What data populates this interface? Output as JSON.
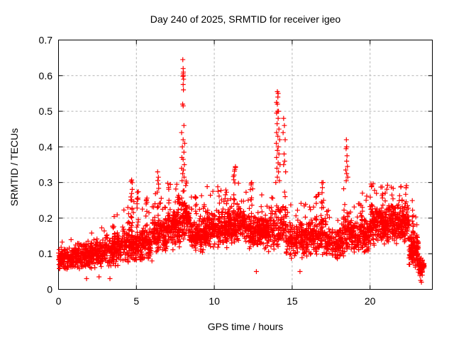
{
  "chart_data": {
    "type": "scatter",
    "title": "Day 240 of 2025, SRMTID for receiver igeo",
    "xlabel": "GPS time / hours",
    "ylabel": "SRMTID / TECUs",
    "xlim": [
      0,
      24
    ],
    "ylim": [
      0,
      0.7
    ],
    "x_ticks": [
      0,
      5,
      10,
      15,
      20
    ],
    "y_ticks": [
      0,
      0.1,
      0.2,
      0.3,
      0.4,
      0.5,
      0.6,
      0.7
    ],
    "grid": true,
    "legend": "none",
    "series": [
      {
        "name": "SRMTID",
        "marker": "plus",
        "color": "#ff0000"
      }
    ],
    "marker": {
      "shape": "plus",
      "color": "#ff0000",
      "size": 7
    },
    "spike_points": [
      [
        7.98,
        0.645
      ],
      [
        8.0,
        0.62
      ],
      [
        8.02,
        0.61
      ],
      [
        8.0,
        0.605
      ],
      [
        8.01,
        0.6
      ],
      [
        7.99,
        0.598
      ],
      [
        8.03,
        0.59
      ],
      [
        8.0,
        0.575
      ],
      [
        8.02,
        0.56
      ],
      [
        7.97,
        0.52
      ],
      [
        8.0,
        0.515
      ],
      [
        8.05,
        0.46
      ],
      [
        7.9,
        0.44
      ],
      [
        8.0,
        0.42
      ],
      [
        8.1,
        0.41
      ],
      [
        7.95,
        0.4
      ],
      [
        8.05,
        0.385
      ],
      [
        7.92,
        0.37
      ],
      [
        8.0,
        0.365
      ],
      [
        8.08,
        0.35
      ],
      [
        7.9,
        0.34
      ],
      [
        8.02,
        0.335
      ],
      [
        7.97,
        0.325
      ],
      [
        8.06,
        0.315
      ],
      [
        7.93,
        0.305
      ],
      [
        14.05,
        0.555
      ],
      [
        14.1,
        0.55
      ],
      [
        14.08,
        0.54
      ],
      [
        14.0,
        0.525
      ],
      [
        14.05,
        0.52
      ],
      [
        14.12,
        0.5
      ],
      [
        14.06,
        0.5
      ],
      [
        14.0,
        0.495
      ],
      [
        14.1,
        0.48
      ],
      [
        14.03,
        0.465
      ],
      [
        14.15,
        0.45
      ],
      [
        14.0,
        0.44
      ],
      [
        14.08,
        0.43
      ],
      [
        14.2,
        0.42
      ],
      [
        13.98,
        0.41
      ],
      [
        14.1,
        0.4
      ],
      [
        14.05,
        0.39
      ],
      [
        14.15,
        0.38
      ],
      [
        14.0,
        0.37
      ],
      [
        14.1,
        0.355
      ],
      [
        14.22,
        0.35
      ],
      [
        14.02,
        0.34
      ],
      [
        14.12,
        0.33
      ],
      [
        14.05,
        0.315
      ],
      [
        14.18,
        0.305
      ],
      [
        13.95,
        0.3
      ],
      [
        14.45,
        0.48
      ],
      [
        14.5,
        0.46
      ],
      [
        14.42,
        0.44
      ],
      [
        14.55,
        0.42
      ],
      [
        14.48,
        0.38
      ],
      [
        14.52,
        0.36
      ],
      [
        14.45,
        0.35
      ],
      [
        14.58,
        0.33
      ],
      [
        18.48,
        0.42
      ],
      [
        18.5,
        0.4
      ],
      [
        18.46,
        0.395
      ],
      [
        18.52,
        0.375
      ],
      [
        18.5,
        0.36
      ],
      [
        18.55,
        0.345
      ],
      [
        18.44,
        0.335
      ],
      [
        18.5,
        0.325
      ],
      [
        18.57,
        0.315
      ],
      [
        18.47,
        0.305
      ],
      [
        16.98,
        0.3
      ],
      [
        17.02,
        0.25
      ],
      [
        17.0,
        0.23
      ]
    ],
    "streaks": [
      [
        3.5,
        0.12,
        0.2,
        8
      ],
      [
        4.7,
        0.16,
        0.31,
        14
      ],
      [
        5.1,
        0.14,
        0.28,
        10
      ],
      [
        5.65,
        0.13,
        0.26,
        8
      ],
      [
        6.4,
        0.15,
        0.33,
        14
      ],
      [
        7.05,
        0.14,
        0.3,
        10
      ],
      [
        7.7,
        0.15,
        0.3,
        8
      ],
      [
        8.8,
        0.14,
        0.28,
        10
      ],
      [
        9.3,
        0.15,
        0.27,
        8
      ],
      [
        10.3,
        0.16,
        0.3,
        12
      ],
      [
        10.75,
        0.15,
        0.28,
        8
      ],
      [
        11.3,
        0.18,
        0.35,
        12
      ],
      [
        11.55,
        0.16,
        0.33,
        8
      ],
      [
        12.35,
        0.15,
        0.3,
        10
      ],
      [
        13.0,
        0.14,
        0.28,
        8
      ],
      [
        16.9,
        0.15,
        0.31,
        10
      ],
      [
        19.5,
        0.14,
        0.28,
        8
      ],
      [
        20.1,
        0.16,
        0.31,
        10
      ],
      [
        20.8,
        0.15,
        0.3,
        10
      ],
      [
        21.4,
        0.16,
        0.29,
        8
      ],
      [
        22.0,
        0.16,
        0.31,
        10
      ],
      [
        22.3,
        0.14,
        0.3,
        8
      ],
      [
        22.75,
        0.12,
        0.25,
        8
      ]
    ],
    "density_segments": [
      [
        0.0,
        1.0,
        150,
        0.085,
        0.035,
        0.045,
        0.16,
        0.08
      ],
      [
        1.0,
        2.0,
        140,
        0.095,
        0.04,
        0.05,
        0.18,
        0.08
      ],
      [
        2.0,
        3.0,
        140,
        0.1,
        0.045,
        0.05,
        0.19,
        0.08
      ],
      [
        3.0,
        4.0,
        140,
        0.11,
        0.05,
        0.05,
        0.21,
        0.1
      ],
      [
        4.0,
        5.0,
        140,
        0.12,
        0.05,
        0.06,
        0.26,
        0.12
      ],
      [
        5.0,
        6.0,
        140,
        0.13,
        0.055,
        0.06,
        0.27,
        0.12
      ],
      [
        6.0,
        7.0,
        140,
        0.15,
        0.06,
        0.07,
        0.3,
        0.12
      ],
      [
        7.0,
        7.9,
        130,
        0.17,
        0.06,
        0.08,
        0.3,
        0.12
      ],
      [
        7.9,
        8.4,
        80,
        0.2,
        0.07,
        0.09,
        0.38,
        0.15
      ],
      [
        8.4,
        9.5,
        160,
        0.15,
        0.055,
        0.07,
        0.27,
        0.1
      ],
      [
        9.5,
        11.0,
        220,
        0.17,
        0.055,
        0.08,
        0.3,
        0.1
      ],
      [
        11.0,
        12.0,
        150,
        0.18,
        0.06,
        0.08,
        0.32,
        0.1
      ],
      [
        12.0,
        13.5,
        220,
        0.16,
        0.055,
        0.06,
        0.29,
        0.1
      ],
      [
        13.5,
        14.6,
        120,
        0.17,
        0.07,
        0.07,
        0.3,
        0.12
      ],
      [
        14.6,
        16.0,
        180,
        0.14,
        0.055,
        0.06,
        0.25,
        0.1
      ],
      [
        16.0,
        17.2,
        160,
        0.15,
        0.055,
        0.07,
        0.28,
        0.1
      ],
      [
        17.2,
        18.3,
        130,
        0.13,
        0.05,
        0.06,
        0.23,
        0.1
      ],
      [
        18.3,
        18.8,
        70,
        0.16,
        0.06,
        0.08,
        0.3,
        0.12
      ],
      [
        18.8,
        20.0,
        160,
        0.15,
        0.055,
        0.07,
        0.27,
        0.1
      ],
      [
        20.0,
        21.0,
        160,
        0.18,
        0.06,
        0.09,
        0.3,
        0.1
      ],
      [
        21.0,
        22.5,
        240,
        0.18,
        0.06,
        0.08,
        0.3,
        0.1
      ],
      [
        22.5,
        23.1,
        130,
        0.11,
        0.05,
        0.03,
        0.22,
        0.08
      ],
      [
        23.1,
        23.5,
        60,
        0.065,
        0.03,
        0.02,
        0.13,
        0.06
      ]
    ],
    "low_outliers": [
      [
        1.8,
        0.03
      ],
      [
        2.6,
        0.035
      ],
      [
        3.3,
        0.03
      ],
      [
        12.7,
        0.05
      ],
      [
        15.5,
        0.05
      ],
      [
        23.3,
        0.02
      ],
      [
        23.25,
        0.025
      ],
      [
        23.35,
        0.04
      ]
    ]
  },
  "colors": {
    "background": "#ffffff",
    "frame": "#000000",
    "grid": "#b4b4b4",
    "marker": "#ff0000",
    "text": "#000000"
  }
}
